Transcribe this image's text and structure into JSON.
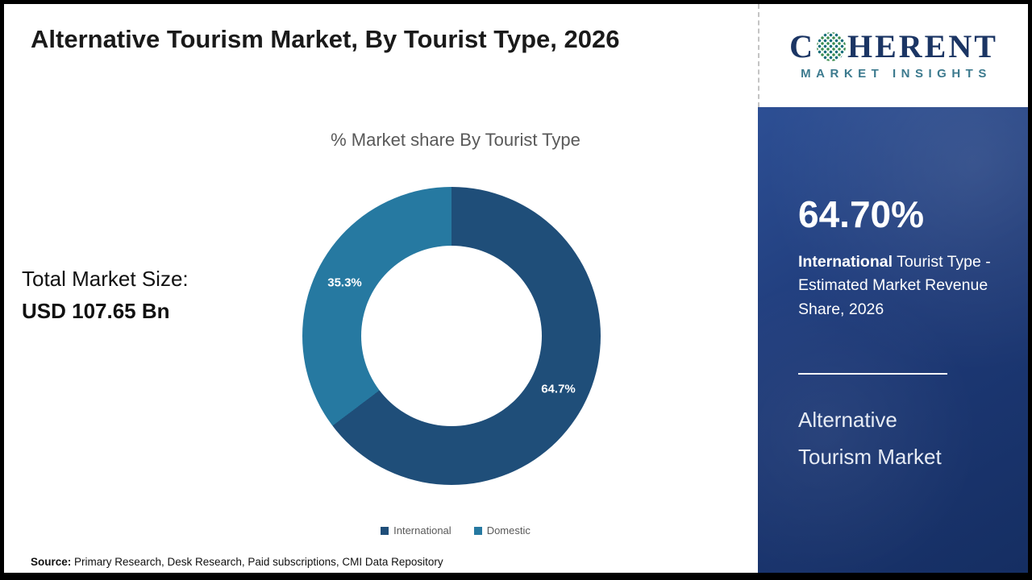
{
  "page": {
    "title": "Alternative Tourism Market, By Tourist Type, 2026",
    "source_label": "Source:",
    "source_text": " Primary Research, Desk Research, Paid subscriptions, CMI Data Repository"
  },
  "left": {
    "total_label": "Total Market Size:",
    "total_value": "USD 107.65 Bn"
  },
  "chart_data": {
    "type": "pie",
    "donut": true,
    "title": "% Market share By Tourist Type",
    "categories": [
      "International",
      "Domestic"
    ],
    "values": [
      64.7,
      35.3
    ],
    "labels": [
      "64.7%",
      "35.3%"
    ],
    "colors": [
      "#1f4e79",
      "#2679a1"
    ],
    "legend_position": "bottom",
    "start_angle_deg": 0,
    "direction": "clockwise"
  },
  "sidebar": {
    "logo": {
      "c": "C",
      "rest": "HERENT",
      "line2": "MARKET INSIGHTS"
    },
    "stat_value": "64.70%",
    "stat_bold": "International",
    "stat_rest": " Tourist Type - Estimated Market Revenue Share, 2026",
    "market_line1": "Alternative",
    "market_line2": "Tourism Market"
  }
}
